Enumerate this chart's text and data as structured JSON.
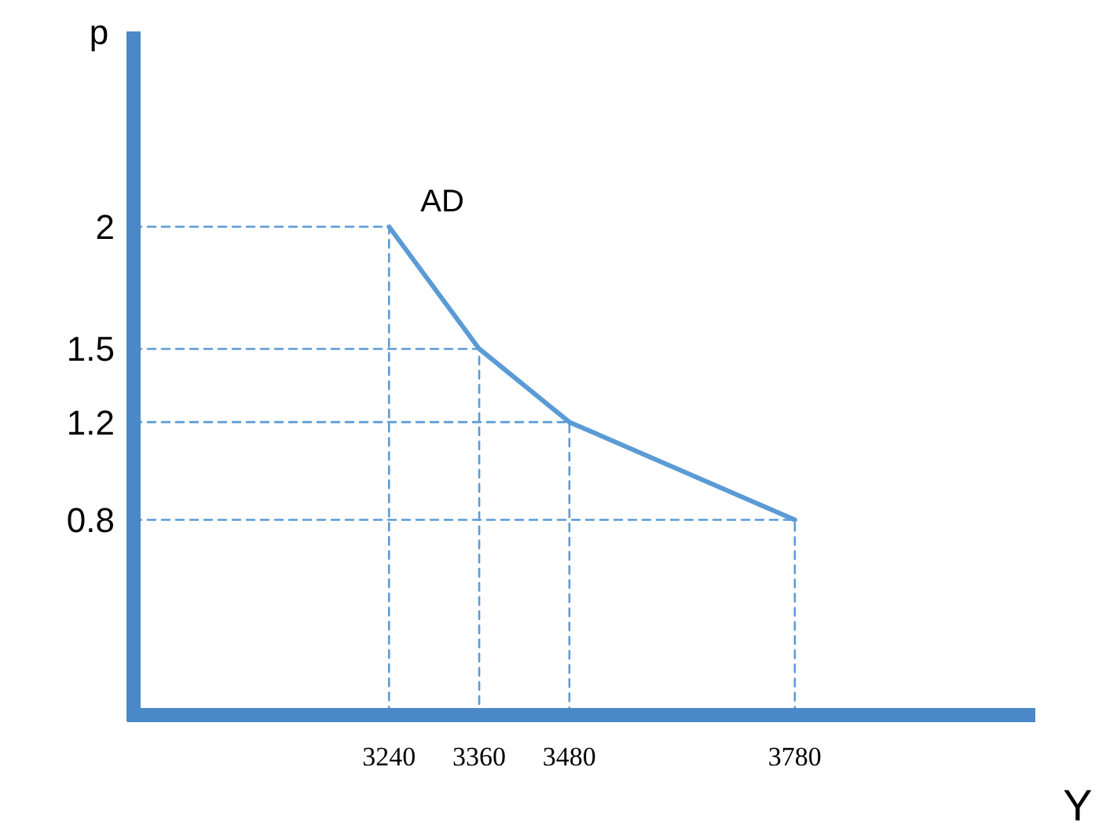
{
  "chart_data": {
    "type": "line",
    "xlabel": "Y",
    "ylabel": "p",
    "x": [
      3240,
      3360,
      3480,
      3780
    ],
    "xlim": [
      2900,
      4100
    ],
    "ylim": [
      0,
      2.8
    ],
    "xticks": [
      3240,
      3360,
      3480,
      3780
    ],
    "yticks": [
      2,
      1.5,
      1.2,
      0.8
    ],
    "grid": false,
    "legend": false,
    "marker": "none",
    "series": [
      {
        "name": "AD",
        "color": "#5b9bd5",
        "values": [
          2,
          1.5,
          1.2,
          0.8
        ],
        "line_style": "solid"
      },
      {
        "color": "#5b9bd5",
        "x": [
          2900,
          3240,
          3240
        ],
        "values": [
          2,
          2,
          0
        ],
        "line_style": "dashed"
      },
      {
        "color": "#5b9bd5",
        "x": [
          2900,
          3360,
          3360
        ],
        "values": [
          1.5,
          1.5,
          0
        ],
        "line_style": "dashed"
      },
      {
        "color": "#5b9bd5",
        "x": [
          2900,
          3480,
          3480
        ],
        "values": [
          1.2,
          1.2,
          0
        ],
        "line_style": "dashed"
      },
      {
        "color": "#5b9bd5",
        "x": [
          2900,
          3780,
          3780
        ],
        "values": [
          0.8,
          0.8,
          0
        ],
        "line_style": "dashed"
      }
    ]
  }
}
